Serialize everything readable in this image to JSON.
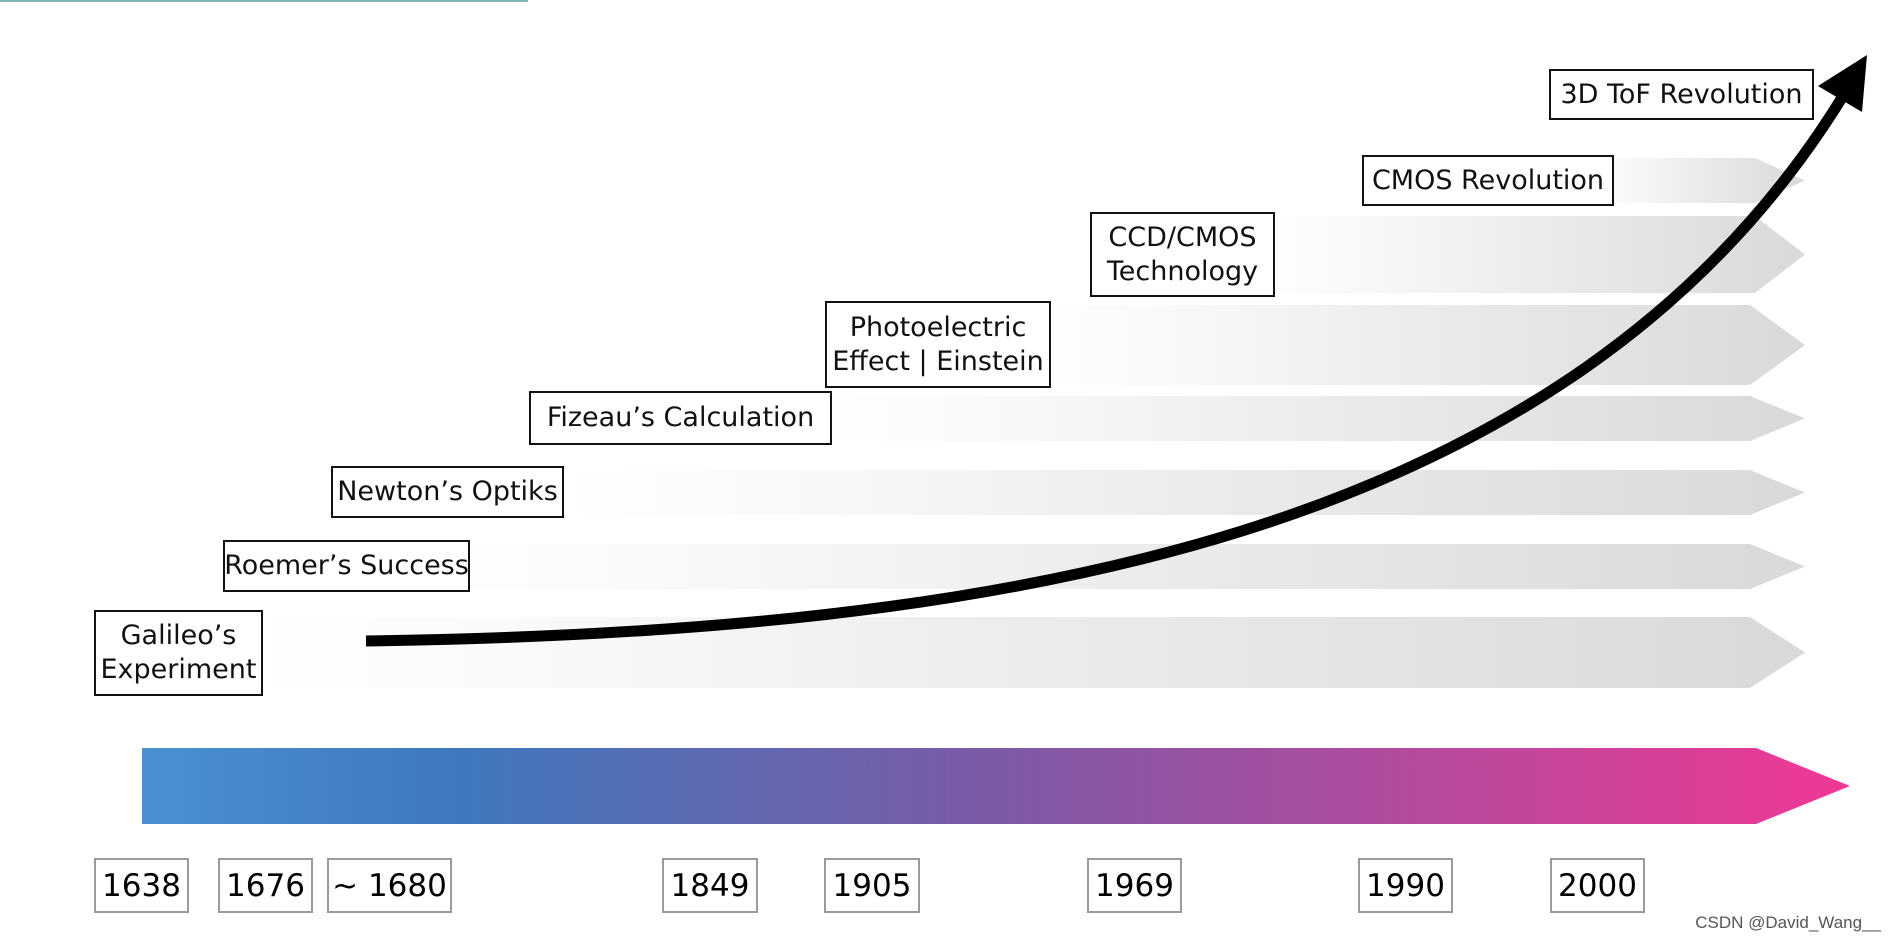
{
  "events": [
    {
      "line1": "Galileo’s",
      "line2": "Experiment"
    },
    {
      "line1": "Roemer’s Success",
      "line2": ""
    },
    {
      "line1": "Newton’s Optiks",
      "line2": ""
    },
    {
      "line1": "Fizeau’s Calculation",
      "line2": ""
    },
    {
      "line1": "Photoelectric",
      "line2": "Effect | Einstein"
    },
    {
      "line1": "CCD/CMOS",
      "line2": "Technology"
    },
    {
      "line1": "CMOS Revolution",
      "line2": ""
    },
    {
      "line1": "3D ToF Revolution",
      "line2": ""
    }
  ],
  "years": [
    "1638",
    "1676",
    "~ 1680",
    "1849",
    "1905",
    "1969",
    "1990",
    "2000"
  ],
  "watermark": "CSDN @David_Wang__",
  "colors": {
    "timeline_start": "#4a90d0",
    "timeline_mid": "#8256a0",
    "timeline_end": "#ec3a95",
    "band": "#d9d9d9",
    "curve": "#000000"
  }
}
